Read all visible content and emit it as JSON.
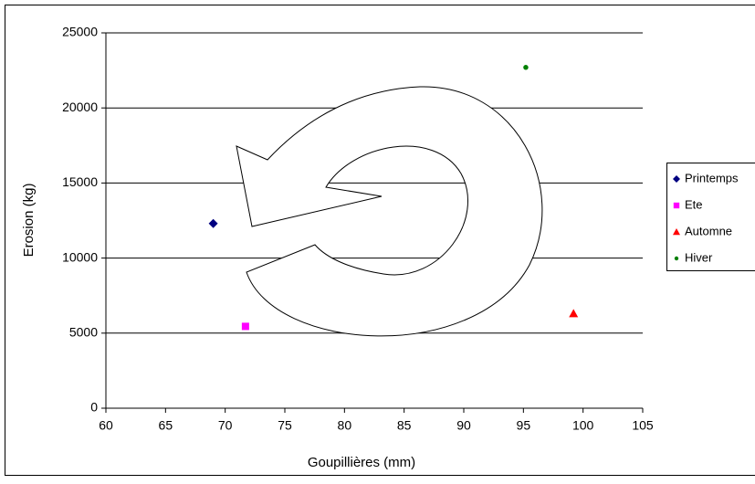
{
  "chart_data": {
    "type": "scatter",
    "xlabel": "Goupillières (mm)",
    "ylabel": "Erosion (kg)",
    "xlim": [
      60,
      105
    ],
    "xticks": [
      60,
      65,
      70,
      75,
      80,
      85,
      90,
      95,
      100,
      105
    ],
    "ylim": [
      0,
      25000
    ],
    "yticks": [
      0,
      5000,
      10000,
      15000,
      20000,
      25000
    ],
    "grid": true,
    "legend": "right",
    "series": [
      {
        "name": "Printemps",
        "color": "#000080",
        "marker": "diamond",
        "x": [
          69
        ],
        "values": [
          12300
        ]
      },
      {
        "name": "Ete",
        "color": "#ff00ff",
        "marker": "square",
        "x": [
          71.7
        ],
        "values": [
          5450
        ]
      },
      {
        "name": "Automne",
        "color": "#ff0000",
        "marker": "triangle",
        "x": [
          99.2
        ],
        "values": [
          6300
        ]
      },
      {
        "name": "Hiver",
        "color": "#008000",
        "marker": "circle",
        "x": [
          95.2
        ],
        "values": [
          22700
        ]
      }
    ]
  }
}
